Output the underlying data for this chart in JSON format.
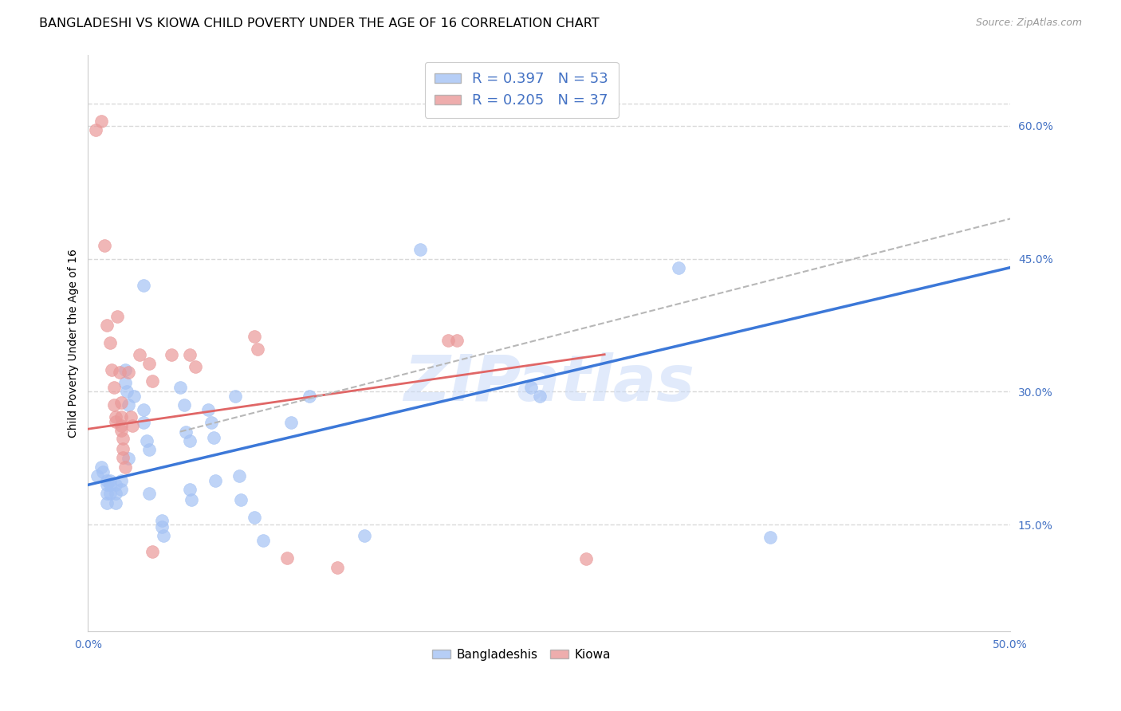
{
  "title": "BANGLADESHI VS KIOWA CHILD POVERTY UNDER THE AGE OF 16 CORRELATION CHART",
  "source": "Source: ZipAtlas.com",
  "ylabel": "Child Poverty Under the Age of 16",
  "xlim": [
    0.0,
    0.5
  ],
  "ylim": [
    0.03,
    0.68
  ],
  "xticks": [
    0.0,
    0.1,
    0.2,
    0.3,
    0.4,
    0.5
  ],
  "xtick_labels": [
    "0.0%",
    "",
    "",
    "",
    "",
    "50.0%"
  ],
  "yticks_right": [
    0.15,
    0.3,
    0.45,
    0.6
  ],
  "ytick_right_labels": [
    "15.0%",
    "30.0%",
    "45.0%",
    "60.0%"
  ],
  "legend_blue_label": "R = 0.397   N = 53",
  "legend_pink_label": "R = 0.205   N = 37",
  "watermark": "ZIPatlas",
  "blue_color": "#a4c2f4",
  "pink_color": "#ea9999",
  "blue_line_color": "#3c78d8",
  "pink_line_color": "#e06666",
  "gray_dash_color": "#b7b7b7",
  "background_color": "#ffffff",
  "grid_color": "#d9d9d9",
  "blue_scatter": [
    [
      0.005,
      0.205
    ],
    [
      0.007,
      0.215
    ],
    [
      0.008,
      0.21
    ],
    [
      0.01,
      0.2
    ],
    [
      0.01,
      0.195
    ],
    [
      0.01,
      0.185
    ],
    [
      0.01,
      0.175
    ],
    [
      0.012,
      0.2
    ],
    [
      0.012,
      0.195
    ],
    [
      0.012,
      0.185
    ],
    [
      0.015,
      0.195
    ],
    [
      0.015,
      0.185
    ],
    [
      0.015,
      0.175
    ],
    [
      0.018,
      0.2
    ],
    [
      0.018,
      0.19
    ],
    [
      0.02,
      0.325
    ],
    [
      0.02,
      0.31
    ],
    [
      0.021,
      0.3
    ],
    [
      0.022,
      0.285
    ],
    [
      0.022,
      0.225
    ],
    [
      0.025,
      0.295
    ],
    [
      0.03,
      0.42
    ],
    [
      0.03,
      0.28
    ],
    [
      0.03,
      0.265
    ],
    [
      0.032,
      0.245
    ],
    [
      0.033,
      0.235
    ],
    [
      0.033,
      0.185
    ],
    [
      0.04,
      0.155
    ],
    [
      0.04,
      0.148
    ],
    [
      0.041,
      0.138
    ],
    [
      0.05,
      0.305
    ],
    [
      0.052,
      0.285
    ],
    [
      0.053,
      0.255
    ],
    [
      0.055,
      0.245
    ],
    [
      0.055,
      0.19
    ],
    [
      0.056,
      0.178
    ],
    [
      0.065,
      0.28
    ],
    [
      0.067,
      0.265
    ],
    [
      0.068,
      0.248
    ],
    [
      0.069,
      0.2
    ],
    [
      0.08,
      0.295
    ],
    [
      0.082,
      0.205
    ],
    [
      0.083,
      0.178
    ],
    [
      0.09,
      0.158
    ],
    [
      0.095,
      0.132
    ],
    [
      0.11,
      0.265
    ],
    [
      0.12,
      0.295
    ],
    [
      0.15,
      0.138
    ],
    [
      0.18,
      0.46
    ],
    [
      0.24,
      0.305
    ],
    [
      0.245,
      0.295
    ],
    [
      0.32,
      0.44
    ],
    [
      0.37,
      0.136
    ]
  ],
  "pink_scatter": [
    [
      0.004,
      0.595
    ],
    [
      0.007,
      0.605
    ],
    [
      0.009,
      0.465
    ],
    [
      0.01,
      0.375
    ],
    [
      0.012,
      0.355
    ],
    [
      0.013,
      0.325
    ],
    [
      0.014,
      0.305
    ],
    [
      0.014,
      0.285
    ],
    [
      0.015,
      0.272
    ],
    [
      0.015,
      0.266
    ],
    [
      0.016,
      0.385
    ],
    [
      0.017,
      0.322
    ],
    [
      0.018,
      0.288
    ],
    [
      0.018,
      0.272
    ],
    [
      0.018,
      0.262
    ],
    [
      0.018,
      0.256
    ],
    [
      0.019,
      0.247
    ],
    [
      0.019,
      0.236
    ],
    [
      0.019,
      0.226
    ],
    [
      0.02,
      0.215
    ],
    [
      0.022,
      0.322
    ],
    [
      0.023,
      0.272
    ],
    [
      0.024,
      0.262
    ],
    [
      0.028,
      0.342
    ],
    [
      0.033,
      0.332
    ],
    [
      0.035,
      0.312
    ],
    [
      0.035,
      0.12
    ],
    [
      0.045,
      0.342
    ],
    [
      0.055,
      0.342
    ],
    [
      0.058,
      0.328
    ],
    [
      0.09,
      0.362
    ],
    [
      0.092,
      0.348
    ],
    [
      0.108,
      0.113
    ],
    [
      0.135,
      0.102
    ],
    [
      0.195,
      0.358
    ],
    [
      0.2,
      0.358
    ],
    [
      0.27,
      0.112
    ]
  ],
  "blue_line_x": [
    0.0,
    0.5
  ],
  "blue_line_y": [
    0.195,
    0.44
  ],
  "pink_line_x": [
    0.0,
    0.28
  ],
  "pink_line_y": [
    0.258,
    0.342
  ],
  "gray_dash_line_x": [
    0.05,
    0.5
  ],
  "gray_dash_line_y": [
    0.255,
    0.495
  ],
  "title_fontsize": 11.5,
  "axis_label_fontsize": 10,
  "tick_fontsize": 10
}
